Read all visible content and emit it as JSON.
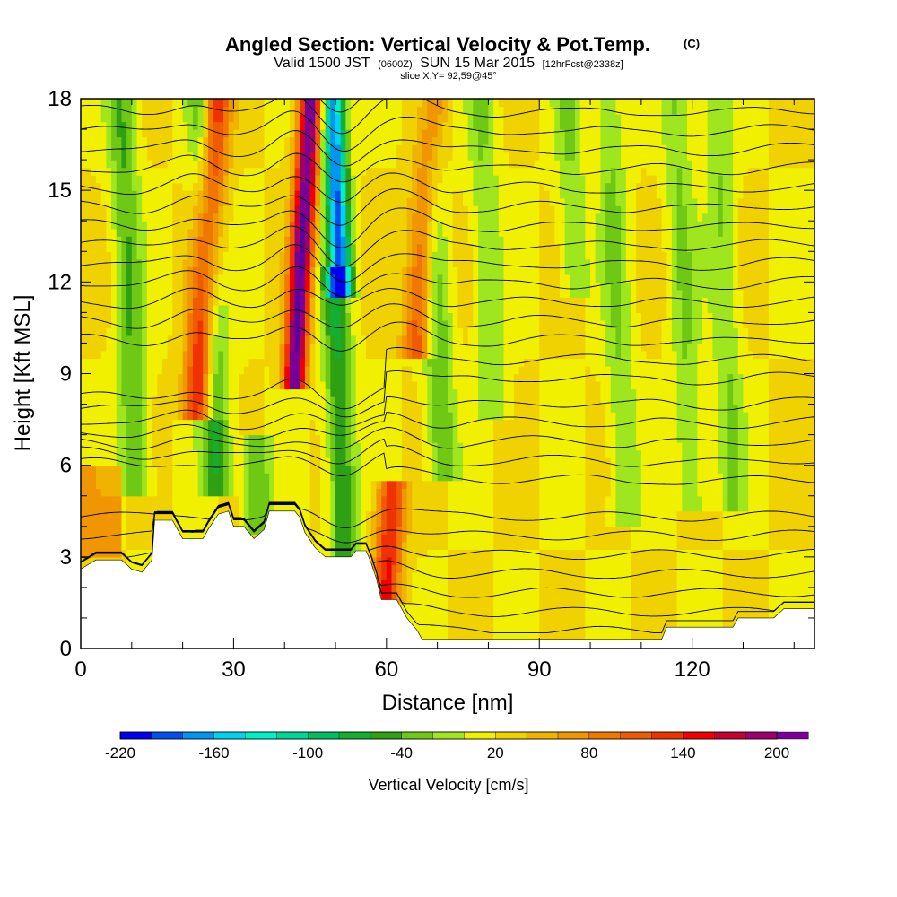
{
  "chart_data": {
    "type": "heatmap",
    "title": "Angled Section: Vertical Velocity & Pot.Temp.",
    "title_suffix": "(C)",
    "subtitle": {
      "prefix": "Valid 1500 JST",
      "zulu": "(0600Z)",
      "date": "SUN 15 Mar 2015",
      "forecast": "[12hrFcst@2338z]"
    },
    "slice_info": "slice X,Y= 92,59@45°",
    "xlabel": "Distance [nm]",
    "ylabel": "Height [Kft MSL]",
    "xlim": [
      0,
      144
    ],
    "ylim": [
      0,
      18
    ],
    "x_ticks": [
      "0",
      "30",
      "60",
      "90",
      "120"
    ],
    "x_tick_values": [
      0,
      30,
      60,
      90,
      120
    ],
    "y_ticks": [
      "0",
      "3",
      "6",
      "9",
      "12",
      "15",
      "18"
    ],
    "y_tick_values": [
      0,
      3,
      6,
      9,
      12,
      15,
      18
    ],
    "colorbar": {
      "label": "Vertical Velocity [cm/s]",
      "range": [
        -220,
        200
      ],
      "step": 20,
      "tick_labels": [
        "-220",
        "-160",
        "-100",
        "-40",
        "20",
        "80",
        "140",
        "200"
      ],
      "colors": [
        "#0000f0",
        "#0050f0",
        "#0096f0",
        "#00d2f0",
        "#00f0c8",
        "#00d796",
        "#00be64",
        "#14af32",
        "#2da014",
        "#6ec814",
        "#a0e61e",
        "#f0f000",
        "#f0d200",
        "#f0b400",
        "#f09600",
        "#f07800",
        "#f05a00",
        "#f03200",
        "#f00000",
        "#c80032",
        "#a0006e",
        "#780096",
        "#5a00a0"
      ]
    },
    "terrain_kft": [
      [
        0,
        2.6
      ],
      [
        3,
        2.9
      ],
      [
        8,
        2.9
      ],
      [
        10,
        2.6
      ],
      [
        12,
        2.5
      ],
      [
        14,
        2.9
      ],
      [
        14.5,
        4.2
      ],
      [
        18,
        4.2
      ],
      [
        19,
        3.9
      ],
      [
        20,
        3.6
      ],
      [
        24,
        3.6
      ],
      [
        25,
        3.9
      ],
      [
        27,
        4.4
      ],
      [
        29,
        4.5
      ],
      [
        30,
        4.0
      ],
      [
        32,
        4.0
      ],
      [
        34,
        3.6
      ],
      [
        36,
        3.9
      ],
      [
        37,
        4.5
      ],
      [
        42,
        4.5
      ],
      [
        43,
        4.3
      ],
      [
        44,
        3.8
      ],
      [
        46,
        3.3
      ],
      [
        48,
        3.0
      ],
      [
        51,
        3.0
      ],
      [
        53,
        3.0
      ],
      [
        54,
        3.2
      ],
      [
        56,
        3.2
      ],
      [
        57,
        2.8
      ],
      [
        58,
        2.3
      ],
      [
        59,
        1.6
      ],
      [
        62,
        1.6
      ],
      [
        64,
        1.0
      ],
      [
        66,
        0.6
      ],
      [
        67,
        0.3
      ],
      [
        80,
        0.3
      ],
      [
        100,
        0.3
      ],
      [
        114,
        0.3
      ],
      [
        115,
        0.7
      ],
      [
        124,
        0.7
      ],
      [
        128,
        0.7
      ],
      [
        129,
        1.0
      ],
      [
        136,
        1.0
      ],
      [
        138,
        1.3
      ],
      [
        144,
        1.3
      ]
    ],
    "vertical_velocity_features": [
      {
        "x": 11,
        "peak_cm_s": -60,
        "from_kft": 5.5,
        "to_kft": 18
      },
      {
        "x": 23,
        "peak_cm_s": 140,
        "from_kft": 8,
        "to_kft": 18
      },
      {
        "x": 27,
        "peak_cm_s": -80,
        "from_kft": 5.5,
        "to_kft": 18
      },
      {
        "x": 35,
        "peak_cm_s": -60,
        "from_kft": 4.2,
        "to_kft": 6.5
      },
      {
        "x": 42,
        "peak_cm_s": 200,
        "from_kft": 9,
        "to_kft": 18
      },
      {
        "x": 51,
        "peak_cm_s": -200,
        "from_kft": 12,
        "to_kft": 18
      },
      {
        "x": 52,
        "peak_cm_s": -80,
        "from_kft": 3,
        "to_kft": 12
      },
      {
        "x": 60,
        "peak_cm_s": 120,
        "from_kft": 2,
        "to_kft": 5
      },
      {
        "x": 66,
        "peak_cm_s": 100,
        "from_kft": 10,
        "to_kft": 18
      },
      {
        "x": 71,
        "peak_cm_s": -60,
        "from_kft": 6,
        "to_kft": 18
      },
      {
        "x": 81,
        "peak_cm_s": -40,
        "from_kft": 8,
        "to_kft": 18
      },
      {
        "x": 97,
        "peak_cm_s": -40,
        "from_kft": 12,
        "to_kft": 18
      },
      {
        "x": 107,
        "peak_cm_s": -40,
        "from_kft": 4.5,
        "to_kft": 18
      },
      {
        "x": 120,
        "peak_cm_s": -40,
        "from_kft": 5,
        "to_kft": 18
      },
      {
        "x": 128,
        "peak_cm_s": -40,
        "from_kft": 5,
        "to_kft": 18
      }
    ],
    "theta_contour_count": 28
  }
}
